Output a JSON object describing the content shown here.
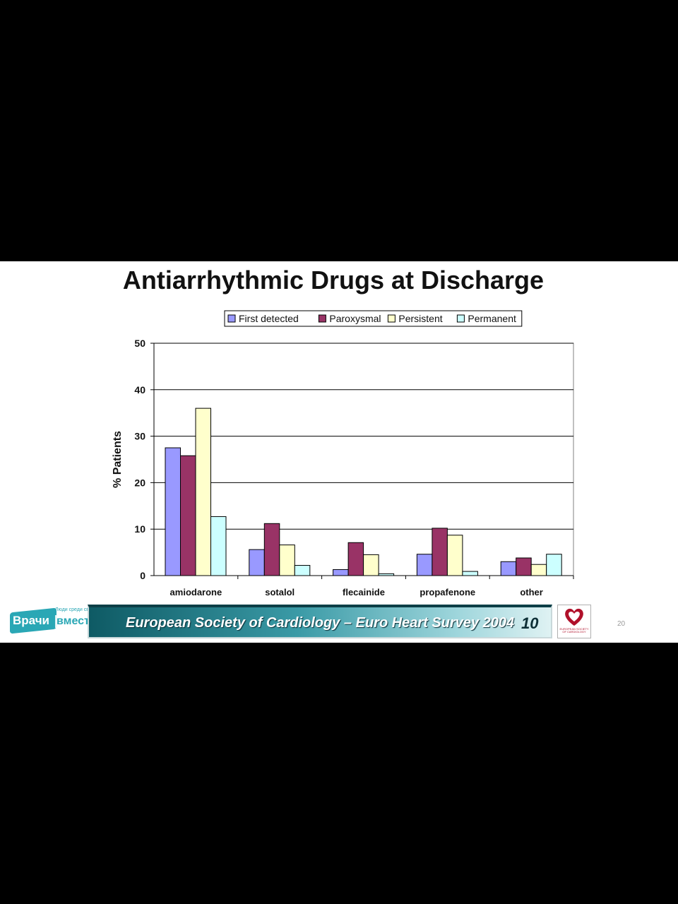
{
  "slide": {
    "title": "Antiarrhythmic Drugs at Discharge",
    "footer_text": "European Society of Cardiology – Euro Heart Survey 2004",
    "footer_number": "10",
    "slide_number": "20",
    "watermark": {
      "brand_part1": "Врачи",
      "brand_part2": "вместе",
      "tagline": "Люди среди своих"
    },
    "logo": {
      "text": "EUROPEAN SOCIETY OF CARDIOLOGY"
    }
  },
  "colors": {
    "page_background": "#000000",
    "slide_background": "#ffffff",
    "banner_dark": "#0e5a64",
    "banner_light": "#9fd6dc",
    "logo_red": "#b0102a"
  },
  "chart_data": {
    "type": "bar",
    "title": "Antiarrhythmic Drugs at Discharge",
    "xlabel": "",
    "ylabel": "% Patients",
    "ylim": [
      0,
      50
    ],
    "yticks": [
      0,
      10,
      20,
      30,
      40,
      50
    ],
    "grid": true,
    "legend_position": "top",
    "categories": [
      "amiodarone",
      "sotalol",
      "flecainide",
      "propafenone",
      "other"
    ],
    "series": [
      {
        "name": "First detected",
        "color": "#9999ff",
        "values": [
          27.5,
          5.6,
          1.3,
          4.6,
          3.0
        ]
      },
      {
        "name": "Paroxysmal",
        "color": "#993366",
        "values": [
          25.8,
          11.2,
          7.1,
          10.2,
          3.8
        ]
      },
      {
        "name": "Persistent",
        "color": "#ffffcc",
        "values": [
          36.0,
          6.6,
          4.5,
          8.7,
          2.4
        ]
      },
      {
        "name": "Permanent",
        "color": "#ccffff",
        "values": [
          12.7,
          2.2,
          0.4,
          0.9,
          4.6
        ]
      }
    ]
  }
}
